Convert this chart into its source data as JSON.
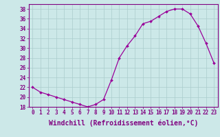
{
  "x": [
    0,
    1,
    2,
    3,
    4,
    5,
    6,
    7,
    8,
    9,
    10,
    11,
    12,
    13,
    14,
    15,
    16,
    17,
    18,
    19,
    20,
    21,
    22,
    23
  ],
  "y": [
    22,
    21,
    20.5,
    20,
    19.5,
    19,
    18.5,
    18,
    18.5,
    19.5,
    23.5,
    28,
    30.5,
    32.5,
    35,
    35.5,
    36.5,
    37.5,
    38,
    38,
    37,
    34.5,
    31,
    27
  ],
  "line_color": "#990099",
  "marker_color": "#990099",
  "bg_color": "#cce8e8",
  "grid_color": "#aacccc",
  "xlabel": "Windchill (Refroidissement éolien,°C)",
  "ylim": [
    18,
    39
  ],
  "xlim": [
    -0.5,
    23.5
  ],
  "yticks": [
    18,
    20,
    22,
    24,
    26,
    28,
    30,
    32,
    34,
    36,
    38
  ],
  "xticks": [
    0,
    1,
    2,
    3,
    4,
    5,
    6,
    7,
    8,
    9,
    10,
    11,
    12,
    13,
    14,
    15,
    16,
    17,
    18,
    19,
    20,
    21,
    22,
    23
  ],
  "font_color": "#800080",
  "tick_fontsize": 5.5,
  "xlabel_fontsize": 7.0
}
